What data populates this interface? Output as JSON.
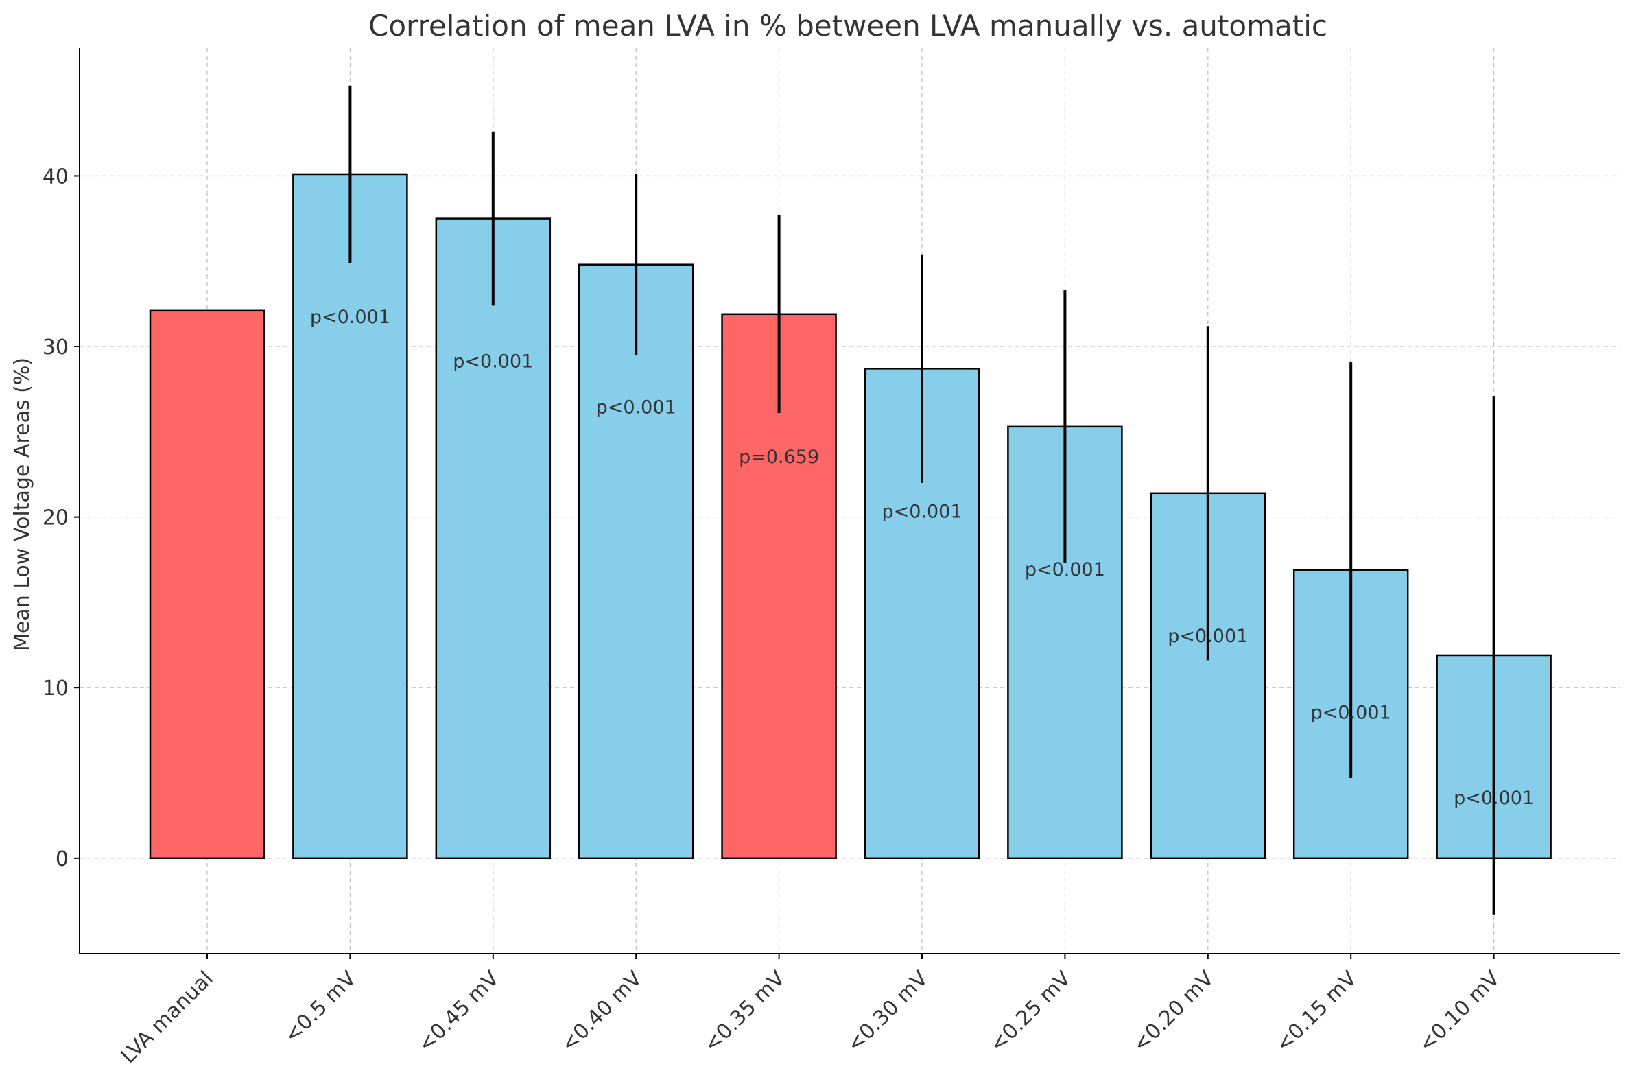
{
  "chart_data": {
    "type": "bar",
    "title": "Correlation of mean LVA in % between LVA manually vs. automatic",
    "xlabel": "",
    "ylabel": "Mean Low Voltage Areas (%)",
    "ylim": [
      -5.6,
      47.5
    ],
    "yticks": [
      0,
      10,
      20,
      30,
      40
    ],
    "grid": true,
    "categories": [
      "LVA manual",
      "<0.5 mV",
      "<0.45 mV",
      "<0.40 mV",
      "<0.35 mV",
      "<0.30 mV",
      "<0.25 mV",
      "<0.20 mV",
      "<0.15 mV",
      "<0.10 mV"
    ],
    "values": [
      32.1,
      40.1,
      37.5,
      34.8,
      31.9,
      28.7,
      25.3,
      21.4,
      16.9,
      11.9
    ],
    "errors": [
      null,
      5.2,
      5.1,
      5.3,
      5.8,
      6.7,
      8.0,
      9.8,
      12.2,
      15.2
    ],
    "annotations": [
      "",
      "p<0.001",
      "p<0.001",
      "p<0.001",
      "p=0.659",
      "p<0.001",
      "p<0.001",
      "p<0.001",
      "p<0.001",
      "p<0.001"
    ],
    "bar_colors": [
      "#ff6666",
      "#87ceeb",
      "#87ceeb",
      "#87ceeb",
      "#ff6666",
      "#87ceeb",
      "#87ceeb",
      "#87ceeb",
      "#87ceeb",
      "#87ceeb"
    ],
    "colors": {
      "highlight": "#ff6666",
      "default": "#87ceeb"
    }
  }
}
